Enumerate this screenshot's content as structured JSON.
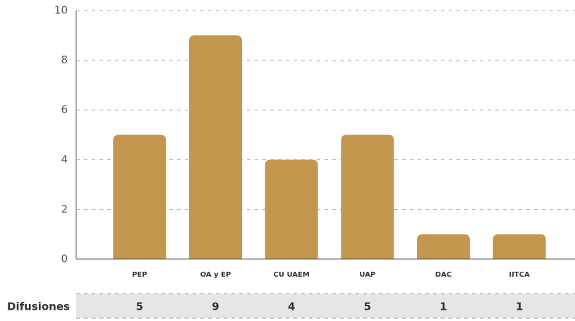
{
  "chart_data": {
    "type": "bar",
    "categories": [
      "PEP",
      "OA y EP",
      "CU UAEM",
      "UAP",
      "DAC",
      "IITCA"
    ],
    "values": [
      5,
      9,
      4,
      5,
      1,
      1
    ],
    "color": "#c4974f",
    "ylim": [
      0,
      10
    ],
    "yticks": [
      0,
      2,
      4,
      6,
      8,
      10
    ],
    "grid": true,
    "row_label": "Difusiones"
  }
}
